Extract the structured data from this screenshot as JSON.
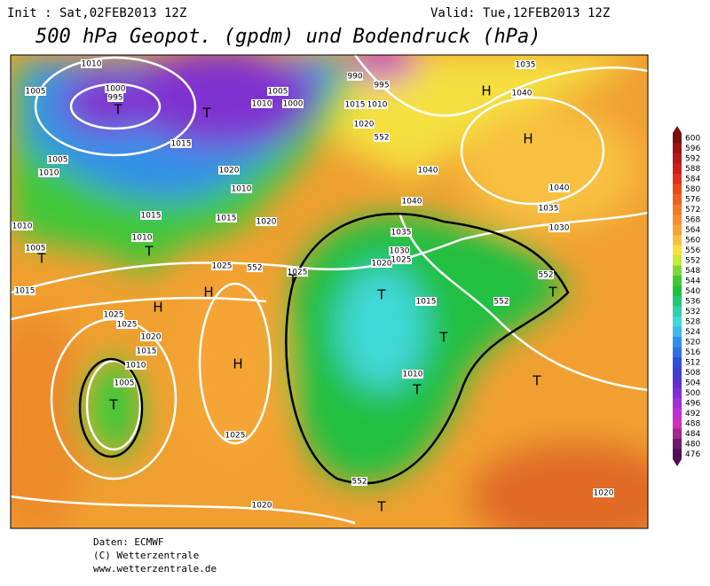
{
  "header": {
    "init": "Init : Sat,02FEB2013 12Z",
    "valid": "Valid: Tue,12FEB2013 12Z",
    "title": "500 hPa Geopot. (gpdm) und Bodendruck (hPa)"
  },
  "colorbar": {
    "levels": [
      600,
      596,
      592,
      588,
      584,
      580,
      576,
      572,
      568,
      564,
      560,
      556,
      552,
      548,
      544,
      540,
      536,
      532,
      528,
      524,
      520,
      516,
      512,
      508,
      504,
      500,
      496,
      492,
      488,
      484,
      480,
      476
    ],
    "colors": [
      "#7a1010",
      "#9a1515",
      "#b51a1a",
      "#cc2020",
      "#dd3020",
      "#e84a20",
      "#ee6020",
      "#f07a25",
      "#f29030",
      "#f5a535",
      "#f8c040",
      "#f5e040",
      "#c8e83a",
      "#80d838",
      "#40c838",
      "#20c040",
      "#20c878",
      "#30d0b0",
      "#40d8d8",
      "#40b8e8",
      "#3090e8",
      "#3070e0",
      "#3050d8",
      "#4040d0",
      "#6030d0",
      "#8030d0",
      "#a030d8",
      "#c030d0",
      "#d030b8",
      "#a02890",
      "#701870",
      "#501050"
    ]
  },
  "map_labels": [
    "1010",
    "1005",
    "1000",
    "995",
    "T",
    "T",
    "1015",
    "1005",
    "1010",
    "1020",
    "1010",
    "1015",
    "1015",
    "1020",
    "1010",
    "1005",
    "T",
    "1010",
    "T",
    "1025",
    "552",
    "1025",
    "T",
    "H",
    "1015",
    "H",
    "1025",
    "1025",
    "1020",
    "1015",
    "1010",
    "1005",
    "T",
    "H",
    "1025",
    "1020",
    "T",
    "552",
    "H",
    "1040",
    "1035",
    "1030",
    "1040",
    "1040",
    "1035",
    "1030",
    "1025",
    "1020",
    "T",
    "1015",
    "T",
    "T",
    "1010",
    "552",
    "T",
    "552",
    "T",
    "1020",
    "H",
    "1040",
    "1035",
    "1015",
    "1010",
    "1020",
    "552",
    "1005",
    "1010",
    "1000",
    "990",
    "995"
  ],
  "footer": [
    "Daten: ECMWF",
    "(C) Wetterzentrale",
    "www.wetterzentrale.de"
  ]
}
